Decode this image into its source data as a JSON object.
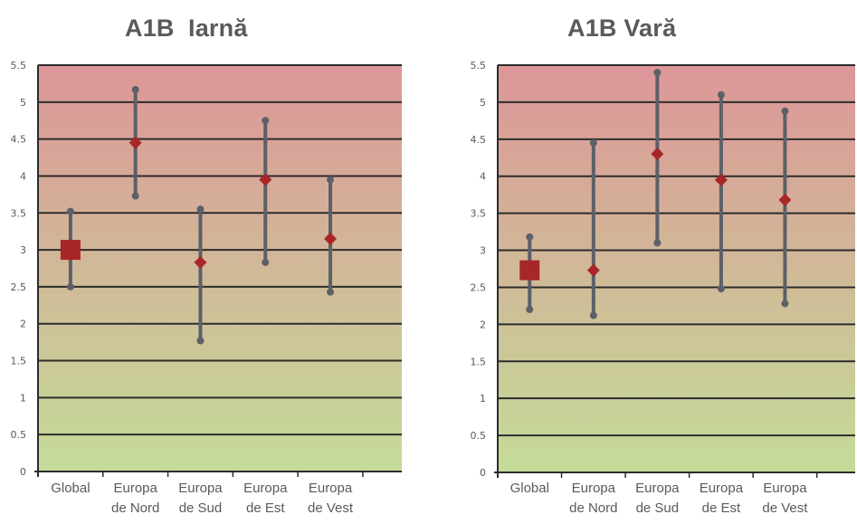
{
  "chart_data": [
    {
      "type": "errorbar",
      "title": "A1B  Iarnă",
      "categories": [
        "Global",
        "Europa de Nord",
        "Europa de Sud",
        "Europa de Est",
        "Europa de Vest"
      ],
      "category_lines": [
        [
          "Global"
        ],
        [
          "Europa",
          "de Nord"
        ],
        [
          "Europa",
          "de Sud"
        ],
        [
          "Europa",
          "de Est"
        ],
        [
          "Europa",
          "de Vest"
        ]
      ],
      "series": [
        {
          "central": 3.0,
          "low": 2.5,
          "high": 3.52
        },
        {
          "central": 4.45,
          "low": 3.73,
          "high": 5.17
        },
        {
          "central": 2.83,
          "low": 1.77,
          "high": 3.55
        },
        {
          "central": 3.95,
          "low": 2.83,
          "high": 4.75
        },
        {
          "central": 3.15,
          "low": 2.43,
          "high": 3.95
        }
      ],
      "ylim": [
        0,
        5.5
      ],
      "yticks": [
        "0",
        "0.5",
        "1",
        "1.5",
        "2",
        "2.5",
        "3",
        "3.5",
        "4",
        "4.5",
        "5",
        "5.5"
      ],
      "grid": true,
      "background": "gradient red (top) to green (bottom)"
    },
    {
      "type": "errorbar",
      "title": "A1B Vară",
      "categories": [
        "Global",
        "Europa de Nord",
        "Europa de Sud",
        "Europa de Est",
        "Europa de Vest"
      ],
      "category_lines": [
        [
          "Global"
        ],
        [
          "Europa",
          "de Nord"
        ],
        [
          "Europa",
          "de Sud"
        ],
        [
          "Europa",
          "de Est"
        ],
        [
          "Europa",
          "de Vest"
        ]
      ],
      "series": [
        {
          "central": 2.73,
          "low": 2.2,
          "high": 3.18
        },
        {
          "central": 2.73,
          "low": 2.12,
          "high": 4.45
        },
        {
          "central": 4.3,
          "low": 3.1,
          "high": 5.4
        },
        {
          "central": 3.95,
          "low": 2.48,
          "high": 5.1
        },
        {
          "central": 3.68,
          "low": 2.28,
          "high": 4.88
        }
      ],
      "ylim": [
        0,
        5.5
      ],
      "yticks": [
        "0",
        "0.5",
        "1",
        "1.5",
        "2",
        "2.5",
        "3",
        "3.5",
        "4",
        "4.5",
        "5",
        "5.5"
      ],
      "grid": true,
      "background": "gradient red (top) to green (bottom)"
    }
  ],
  "colors": {
    "gradient_top": "#dd9698",
    "gradient_bottom": "#c4dc98",
    "whisker": "#5c6068",
    "marker": "#a82628",
    "gridline": "#2c2c2c",
    "text": "#5a5a5a"
  }
}
